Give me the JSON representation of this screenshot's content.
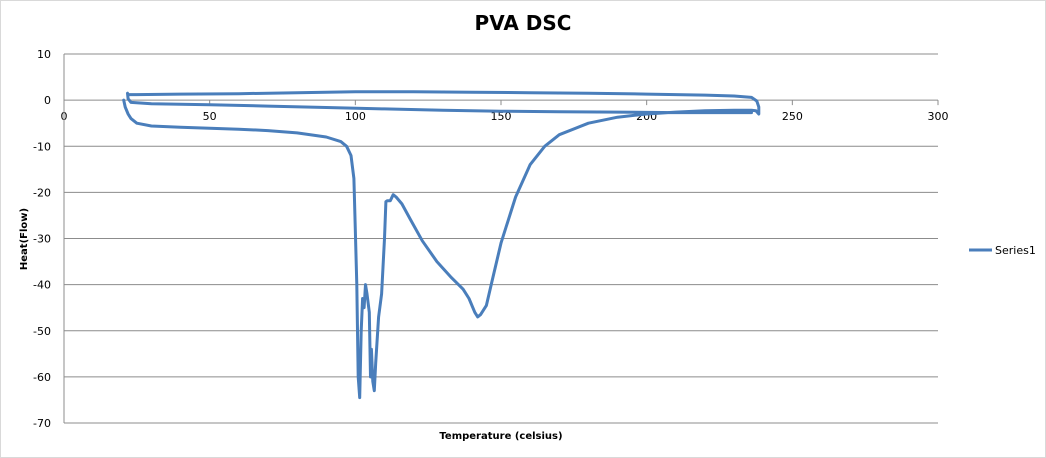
{
  "chart_data": {
    "type": "line",
    "title": "PVA DSC",
    "xlabel": "Temperature (celsius)",
    "ylabel": "Heat(Flow)",
    "xlim": [
      0,
      300
    ],
    "ylim": [
      -70,
      10
    ],
    "xticks": [
      0,
      50,
      100,
      150,
      200,
      250,
      300
    ],
    "yticks": [
      10,
      0,
      -10,
      -20,
      -30,
      -40,
      -50,
      -60,
      -70
    ],
    "grid": true,
    "legend_position": "right",
    "series_color": "#4a7ebb",
    "series": [
      {
        "name": "Series1",
        "points": [
          [
            20.5,
            0
          ],
          [
            21,
            -1.5
          ],
          [
            22,
            -3
          ],
          [
            23,
            -4
          ],
          [
            25,
            -5
          ],
          [
            30,
            -5.6
          ],
          [
            40,
            -5.9
          ],
          [
            50,
            -6.1
          ],
          [
            60,
            -6.3
          ],
          [
            70,
            -6.6
          ],
          [
            80,
            -7.1
          ],
          [
            90,
            -8
          ],
          [
            95,
            -9
          ],
          [
            97,
            -10
          ],
          [
            98.5,
            -12
          ],
          [
            99.5,
            -17
          ],
          [
            100,
            -28
          ],
          [
            100.5,
            -40
          ],
          [
            101,
            -60
          ],
          [
            101.5,
            -64.5
          ],
          [
            102,
            -50
          ],
          [
            102.5,
            -43
          ],
          [
            103,
            -45
          ],
          [
            103.5,
            -40
          ],
          [
            104,
            -42
          ],
          [
            104.8,
            -46
          ],
          [
            105.2,
            -60
          ],
          [
            105.5,
            -54
          ],
          [
            106,
            -61
          ],
          [
            106.5,
            -63
          ],
          [
            107,
            -57
          ],
          [
            108,
            -47
          ],
          [
            109,
            -42
          ],
          [
            110,
            -30
          ],
          [
            110.5,
            -22
          ],
          [
            111,
            -21.8
          ],
          [
            112,
            -21.8
          ],
          [
            113,
            -20.5
          ],
          [
            114,
            -21
          ],
          [
            116,
            -22.5
          ],
          [
            119,
            -26
          ],
          [
            123,
            -30.5
          ],
          [
            128,
            -35
          ],
          [
            133,
            -38.5
          ],
          [
            137,
            -41
          ],
          [
            139,
            -43
          ],
          [
            141,
            -46
          ],
          [
            142,
            -47
          ],
          [
            143,
            -46.5
          ],
          [
            145,
            -44.5
          ],
          [
            147,
            -39
          ],
          [
            150,
            -31
          ],
          [
            155,
            -21
          ],
          [
            160,
            -14
          ],
          [
            165,
            -10
          ],
          [
            170,
            -7.5
          ],
          [
            180,
            -5
          ],
          [
            190,
            -3.7
          ],
          [
            200,
            -3
          ],
          [
            210,
            -2.6
          ],
          [
            220,
            -2.3
          ],
          [
            230,
            -2.2
          ],
          [
            236,
            -2.2
          ],
          [
            237.5,
            -2.3
          ],
          [
            238.5,
            -3
          ],
          [
            238.5,
            -1.5
          ],
          [
            237.8,
            -0.2
          ],
          [
            236,
            0.6
          ],
          [
            230,
            0.9
          ],
          [
            220,
            1.1
          ],
          [
            200,
            1.3
          ],
          [
            180,
            1.5
          ],
          [
            160,
            1.6
          ],
          [
            140,
            1.7
          ],
          [
            120,
            1.8
          ],
          [
            100,
            1.8
          ],
          [
            80,
            1.6
          ],
          [
            60,
            1.4
          ],
          [
            40,
            1.3
          ],
          [
            25,
            1.2
          ],
          [
            22,
            1.2
          ],
          [
            21.8,
            1.5
          ],
          [
            22,
            0.3
          ],
          [
            23,
            -0.5
          ],
          [
            30,
            -0.8
          ],
          [
            50,
            -1
          ],
          [
            70,
            -1.3
          ],
          [
            90,
            -1.6
          ],
          [
            110,
            -1.9
          ],
          [
            130,
            -2.2
          ],
          [
            150,
            -2.4
          ],
          [
            170,
            -2.5
          ],
          [
            190,
            -2.6
          ],
          [
            210,
            -2.7
          ],
          [
            230,
            -2.7
          ],
          [
            236,
            -2.7
          ]
        ]
      }
    ]
  }
}
